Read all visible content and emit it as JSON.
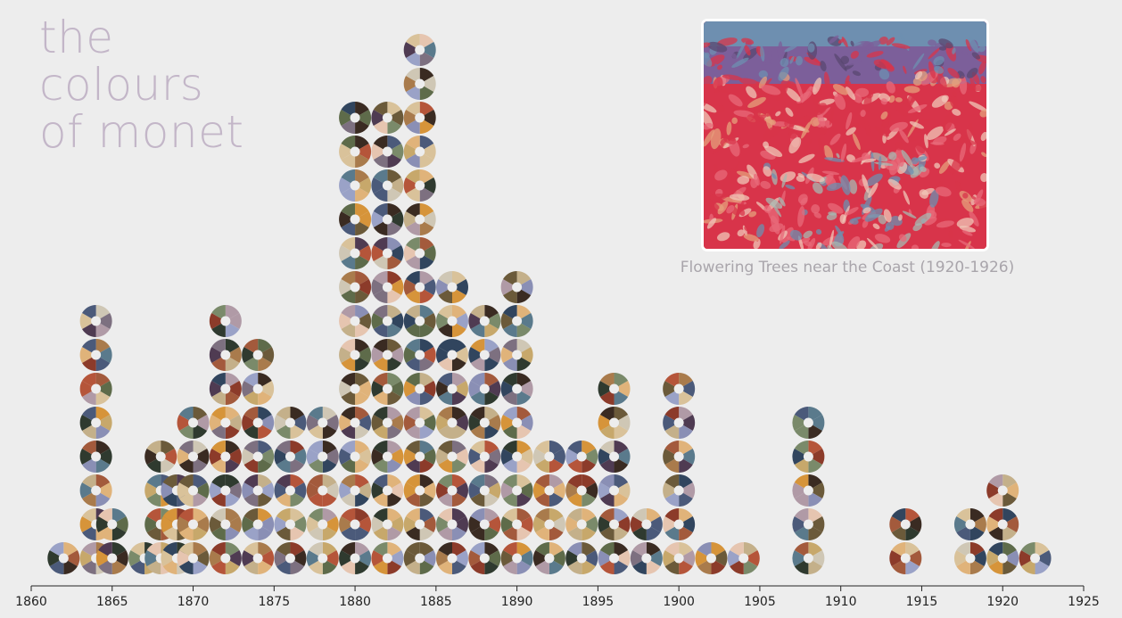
{
  "header": {
    "title_lines": [
      "the",
      "colours",
      "of monet"
    ]
  },
  "feature": {
    "caption": "Flowering Trees near the Coast (1920-1926)",
    "image_icon": "monet-painting-image",
    "painting_colors": [
      "#d8344a",
      "#e86a7a",
      "#7c5f9a",
      "#6e8fb0",
      "#a7b8b2",
      "#e6a07c",
      "#f0c7b8",
      "#5a4770"
    ]
  },
  "chart_data": {
    "type": "dot-stack",
    "title": "the colours of monet",
    "xlabel": "",
    "ylabel": "",
    "xlim": [
      1860,
      1925
    ],
    "xticks": [
      1860,
      1865,
      1870,
      1875,
      1880,
      1885,
      1890,
      1895,
      1900,
      1905,
      1910,
      1915,
      1920,
      1925
    ],
    "mark": "colour wheel per painting (one donut per painting, stacked by year)",
    "counts_by_year": [
      {
        "year": 1862,
        "count": 1
      },
      {
        "year": 1864,
        "count": 8
      },
      {
        "year": 1865,
        "count": 2
      },
      {
        "year": 1867,
        "count": 1
      },
      {
        "year": 1868,
        "count": 4
      },
      {
        "year": 1869,
        "count": 3
      },
      {
        "year": 1870,
        "count": 5
      },
      {
        "year": 1872,
        "count": 8
      },
      {
        "year": 1874,
        "count": 7
      },
      {
        "year": 1876,
        "count": 5
      },
      {
        "year": 1878,
        "count": 5
      },
      {
        "year": 1880,
        "count": 14
      },
      {
        "year": 1882,
        "count": 14
      },
      {
        "year": 1884,
        "count": 16
      },
      {
        "year": 1886,
        "count": 9
      },
      {
        "year": 1888,
        "count": 8
      },
      {
        "year": 1890,
        "count": 9
      },
      {
        "year": 1892,
        "count": 4
      },
      {
        "year": 1894,
        "count": 4
      },
      {
        "year": 1896,
        "count": 6
      },
      {
        "year": 1898,
        "count": 2
      },
      {
        "year": 1900,
        "count": 6
      },
      {
        "year": 1902,
        "count": 1
      },
      {
        "year": 1904,
        "count": 1
      },
      {
        "year": 1908,
        "count": 5
      },
      {
        "year": 1914,
        "count": 2
      },
      {
        "year": 1918,
        "count": 2
      },
      {
        "year": 1920,
        "count": 3
      },
      {
        "year": 1922,
        "count": 1
      }
    ],
    "palette": [
      "#6b5a3a",
      "#a97b4c",
      "#3a2b22",
      "#d9c29a",
      "#8a8fb5",
      "#4b5a7a",
      "#c7a86b",
      "#5e6b4a",
      "#b5553a",
      "#7d7080",
      "#2f3a2f",
      "#e0b37a",
      "#9aa2c7",
      "#a35a3c",
      "#cfc7b5",
      "#4f3b52",
      "#d6943a",
      "#7a8a6a",
      "#b09aa6",
      "#31455e",
      "#e6c5b0",
      "#8c3b2a",
      "#5a7a8c",
      "#c4b08a"
    ]
  }
}
